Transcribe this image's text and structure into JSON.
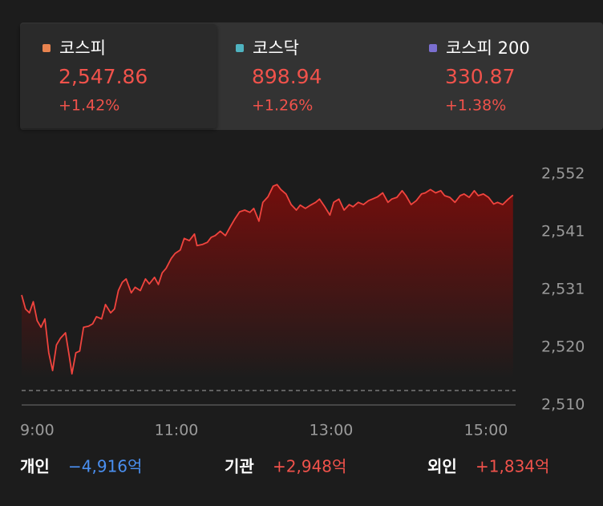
{
  "tabs": [
    {
      "name": "코스피",
      "color": "#e8834f",
      "value": "2,547.86",
      "change": "+1.42%"
    },
    {
      "name": "코스닥",
      "color": "#4fb3c0",
      "value": "898.94",
      "change": "+1.26%"
    },
    {
      "name": "코스피 200",
      "color": "#7b6fd0",
      "value": "330.87",
      "change": "+1.38%"
    }
  ],
  "chart_data": {
    "type": "line",
    "color": "#f0443e",
    "x": [
      0,
      3,
      6,
      9,
      12,
      15,
      18,
      21,
      24,
      27,
      30,
      34,
      37,
      39,
      42,
      45,
      48,
      52,
      55,
      58,
      62,
      65,
      69,
      72,
      75,
      78,
      81,
      85,
      88,
      92,
      96,
      99,
      103,
      106,
      109,
      112,
      116,
      119,
      123,
      126,
      130,
      134,
      136,
      140,
      144,
      147,
      150,
      154,
      158,
      162,
      165,
      169,
      173,
      177,
      180,
      184,
      187,
      191,
      195,
      198,
      201,
      205,
      209,
      213,
      216,
      220,
      224,
      228,
      231,
      235,
      239,
      242,
      246,
      250,
      254,
      257,
      261,
      265,
      269,
      272,
      276,
      280,
      284,
      287,
      291,
      295,
      298,
      302,
      306,
      310,
      313,
      317,
      321,
      325,
      328,
      332,
      336,
      340,
      343,
      347,
      351,
      354,
      358,
      362,
      366,
      369,
      373,
      377,
      381
    ],
    "values": [
      2529.8,
      2527.3,
      2526.6,
      2528.6,
      2525.2,
      2524.0,
      2525.5,
      2519.4,
      2516.2,
      2520.8,
      2522.0,
      2523.0,
      2518.7,
      2515.6,
      2519.4,
      2519.7,
      2524.0,
      2524.2,
      2524.6,
      2525.9,
      2525.5,
      2528.1,
      2526.6,
      2527.3,
      2530.6,
      2532.1,
      2532.7,
      2530.2,
      2531.2,
      2530.6,
      2532.7,
      2531.8,
      2533.0,
      2531.7,
      2533.8,
      2534.6,
      2536.4,
      2537.3,
      2537.9,
      2540.0,
      2539.6,
      2540.8,
      2538.7,
      2538.9,
      2539.3,
      2540.2,
      2540.5,
      2541.3,
      2540.5,
      2542.2,
      2543.4,
      2544.8,
      2545.1,
      2544.7,
      2545.4,
      2543.1,
      2546.5,
      2547.5,
      2549.4,
      2549.7,
      2548.8,
      2548.0,
      2546.1,
      2545.1,
      2546.0,
      2545.4,
      2546.0,
      2546.5,
      2547.1,
      2545.7,
      2544.2,
      2546.5,
      2547.1,
      2545.1,
      2546.1,
      2545.7,
      2546.5,
      2546.1,
      2546.8,
      2547.1,
      2547.5,
      2548.2,
      2546.5,
      2547.1,
      2547.4,
      2548.6,
      2547.7,
      2546.1,
      2546.8,
      2548.0,
      2548.2,
      2548.8,
      2548.2,
      2548.6,
      2547.7,
      2547.4,
      2546.5,
      2547.7,
      2548.0,
      2547.4,
      2548.6,
      2547.7,
      2548.0,
      2547.4,
      2546.2,
      2546.5,
      2546.1,
      2547.0,
      2547.8
    ],
    "xlim": [
      0,
      383
    ],
    "xticks": [
      {
        "value": 0,
        "label": "9:00"
      },
      {
        "value": 120,
        "label": "11:00"
      },
      {
        "value": 240,
        "label": "13:00"
      },
      {
        "value": 360,
        "label": "15:00"
      }
    ],
    "ylim": [
      2510,
      2551.6
    ],
    "yticks": [
      {
        "value": 2510,
        "label": "2,510"
      },
      {
        "value": 2520.4,
        "label": "2,520"
      },
      {
        "value": 2530.8,
        "label": "2,531"
      },
      {
        "value": 2541.2,
        "label": "2,541"
      },
      {
        "value": 2551.6,
        "label": "2,552"
      }
    ],
    "ref_line": 2512.6
  },
  "flows": [
    {
      "label": "개인",
      "value": "−4,916억",
      "color": "#4a8ff0"
    },
    {
      "label": "기관",
      "value": "+2,948억",
      "color": "#f0524b"
    },
    {
      "label": "외인",
      "value": "+1,834억",
      "color": "#f0524b"
    }
  ]
}
